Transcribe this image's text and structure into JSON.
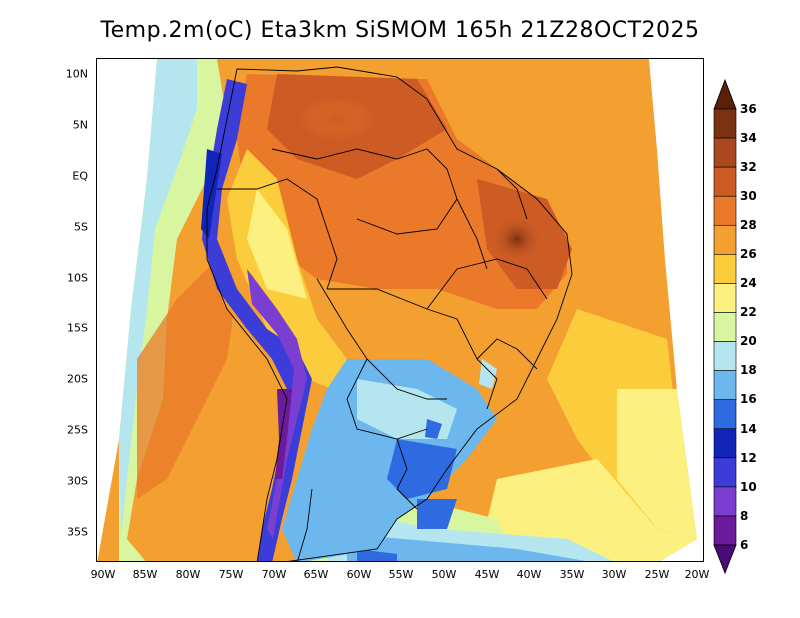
{
  "title": "Temp.2m(oC) Eta3km SiSMOM 165h 21Z28OCT2025",
  "y_axis": [
    "10N",
    "5N",
    "EQ",
    "5S",
    "10S",
    "15S",
    "20S",
    "25S",
    "30S",
    "35S"
  ],
  "x_axis": [
    "90W",
    "85W",
    "80W",
    "75W",
    "70W",
    "65W",
    "60W",
    "55W",
    "50W",
    "45W",
    "40W",
    "35W",
    "30W",
    "25W",
    "20W"
  ],
  "colorbar": {
    "labels": [
      "36",
      "34",
      "32",
      "30",
      "28",
      "26",
      "24",
      "22",
      "20",
      "18",
      "16",
      "14",
      "12",
      "10",
      "8",
      "6"
    ],
    "bins": [
      {
        "color": "#7a3210"
      },
      {
        "color": "#a8481c"
      },
      {
        "color": "#cc5b24"
      },
      {
        "color": "#ea7a2a"
      },
      {
        "color": "#f3a030"
      },
      {
        "color": "#fbcc3c"
      },
      {
        "color": "#fbf080"
      },
      {
        "color": "#d8f5a0"
      },
      {
        "color": "#b5e6f0"
      },
      {
        "color": "#6cb8ee"
      },
      {
        "color": "#2e6be0"
      },
      {
        "color": "#1024b8"
      },
      {
        "color": "#3c3cd8"
      },
      {
        "color": "#7a3ed0"
      },
      {
        "color": "#6a1a9a"
      }
    ],
    "top_arrow_color": "#5a2008",
    "bottom_arrow_color": "#4a0a7a"
  }
}
